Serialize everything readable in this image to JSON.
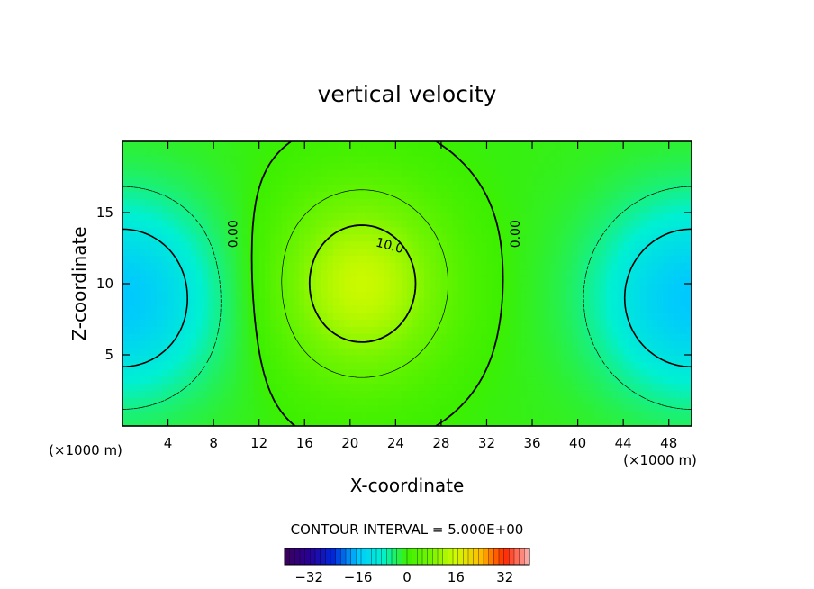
{
  "chart_data": {
    "type": "heatmap",
    "title": "vertical velocity",
    "xlabel": "X-coordinate",
    "ylabel": "Z-coordinate",
    "x_unit": "(×1000 m)",
    "z_unit": "(×1000 m)",
    "xlim": [
      0,
      50
    ],
    "ylim": [
      0,
      20
    ],
    "xticks": [
      4,
      8,
      12,
      16,
      20,
      24,
      28,
      32,
      36,
      40,
      44,
      48
    ],
    "xtick_labels": [
      "4",
      "8",
      "12",
      "16",
      "20",
      "24",
      "28",
      "32",
      "36",
      "40",
      "44",
      "48"
    ],
    "yticks": [
      5,
      10,
      15
    ],
    "ytick_labels": [
      "5",
      "10",
      "15"
    ],
    "contour_interval_text": "CONTOUR INTERVAL = 5.000E+00",
    "contour_labels": [
      {
        "text": "0.00",
        "x": 9.7,
        "z": 13.5
      },
      {
        "text": "10.0",
        "x": 23.5,
        "z": 12.7
      },
      {
        "text": "0.00",
        "x": 34.5,
        "z": 13.5
      }
    ],
    "field": {
      "description_values": "approximate vertical velocity extrema",
      "max": 13.5,
      "max_location": [
        21,
        10
      ],
      "min": -15,
      "min_locations": [
        [
          0,
          9
        ],
        [
          50,
          9
        ]
      ]
    },
    "colorbar": {
      "range": [
        -40,
        40
      ],
      "tick_values": [
        -32,
        -16,
        0,
        16,
        32
      ],
      "tick_labels": [
        "−32",
        "−16",
        "0",
        "16",
        "32"
      ]
    },
    "grid": false,
    "colors": {
      "deep_negative": "#2a0070",
      "negative": "#00e0ff",
      "zero": "#44ee22",
      "positive": "#e8f000",
      "high_positive": "#ff2000"
    }
  }
}
